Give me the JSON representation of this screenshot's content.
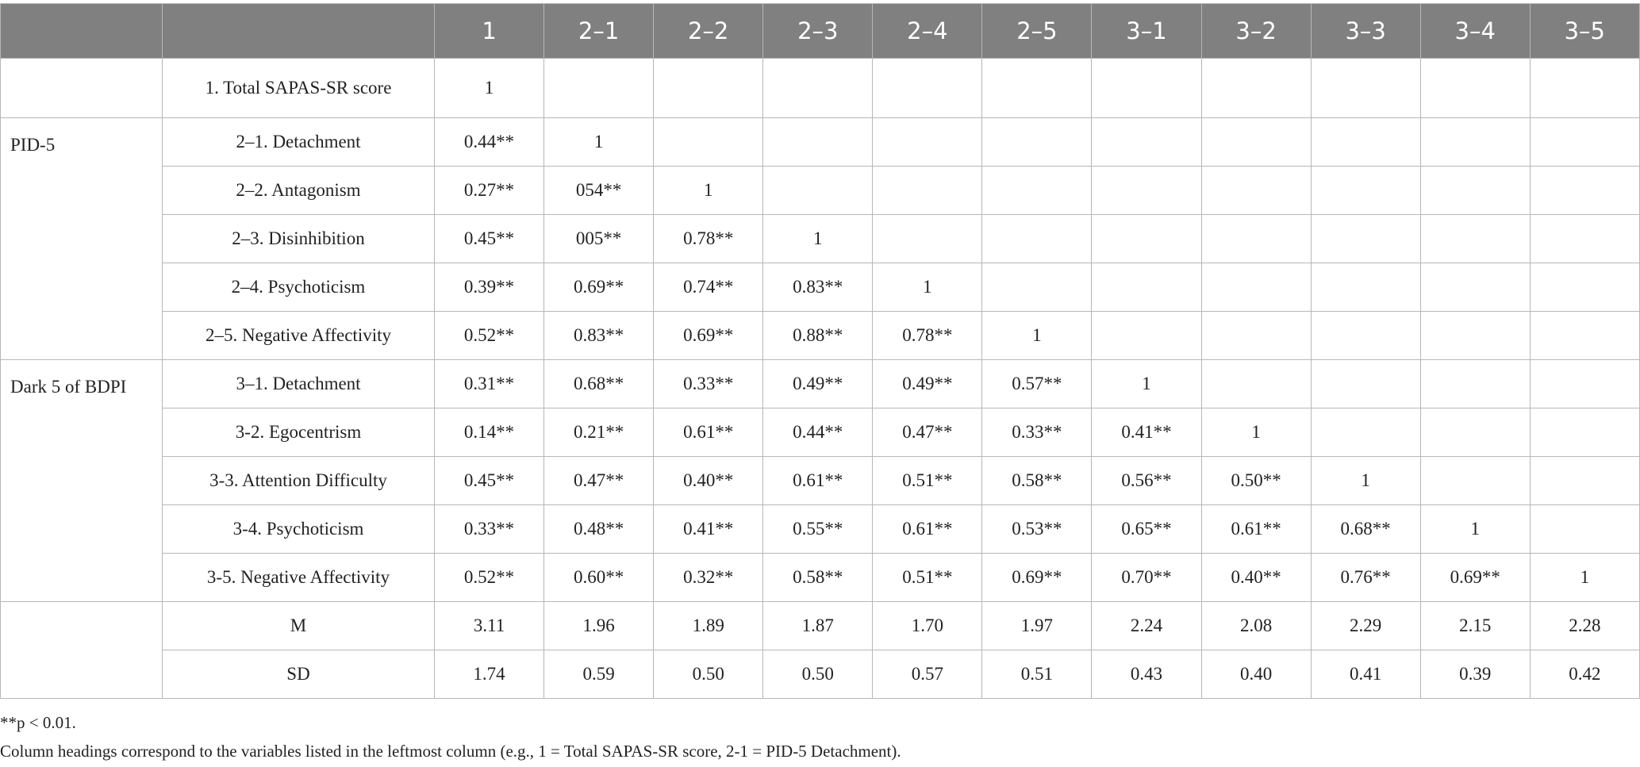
{
  "table": {
    "columns": [
      "1",
      "2–1",
      "2–2",
      "2–3",
      "2–4",
      "2–5",
      "3–1",
      "3–2",
      "3–3",
      "3–4",
      "3–5"
    ],
    "sections": [
      {
        "rows": [
          {
            "label": "1. Total SAPAS-SR score",
            "cells": [
              "1"
            ]
          }
        ]
      },
      {
        "label": "PID-5",
        "rows": [
          {
            "label": "2–1. Detachment",
            "cells": [
              "0.44**",
              "1"
            ]
          },
          {
            "label": "2–2. Antagonism",
            "cells": [
              "0.27**",
              "054**",
              "1"
            ]
          },
          {
            "label": "2–3. Disinhibition",
            "cells": [
              "0.45**",
              "005**",
              "0.78**",
              "1"
            ]
          },
          {
            "label": "2–4. Psychoticism",
            "cells": [
              "0.39**",
              "0.69**",
              "0.74**",
              "0.83**",
              "1"
            ]
          },
          {
            "label": "2–5. Negative Affectivity",
            "cells": [
              "0.52**",
              "0.83**",
              "0.69**",
              "0.88**",
              "0.78**",
              "1"
            ]
          }
        ]
      },
      {
        "label": "Dark 5 of BDPI",
        "rows": [
          {
            "label": "3–1. Detachment",
            "cells": [
              "0.31**",
              "0.68**",
              "0.33**",
              "0.49**",
              "0.49**",
              "0.57**",
              "1"
            ]
          },
          {
            "label": "3-2. Egocentrism",
            "cells": [
              "0.14**",
              "0.21**",
              "0.61**",
              "0.44**",
              "0.47**",
              "0.33**",
              "0.41**",
              "1"
            ]
          },
          {
            "label": "3-3. Attention Difficulty",
            "cells": [
              "0.45**",
              "0.47**",
              "0.40**",
              "0.61**",
              "0.51**",
              "0.58**",
              "0.56**",
              "0.50**",
              "1"
            ]
          },
          {
            "label": "3-4. Psychoticism",
            "cells": [
              "0.33**",
              "0.48**",
              "0.41**",
              "0.55**",
              "0.61**",
              "0.53**",
              "0.65**",
              "0.61**",
              "0.68**",
              "1"
            ]
          },
          {
            "label": "3-5. Negative Affectivity",
            "cells": [
              "0.52**",
              "0.60**",
              "0.32**",
              "0.58**",
              "0.51**",
              "0.69**",
              "0.70**",
              "0.40**",
              "0.76**",
              "0.69**",
              "1"
            ]
          }
        ]
      },
      {
        "rows": [
          {
            "label": "M",
            "cells": [
              "3.11",
              "1.96",
              "1.89",
              "1.87",
              "1.70",
              "1.97",
              "2.24",
              "2.08",
              "2.29",
              "2.15",
              "2.28"
            ]
          },
          {
            "label": "SD",
            "cells": [
              "1.74",
              "0.59",
              "0.50",
              "0.50",
              "0.57",
              "0.51",
              "0.43",
              "0.40",
              "0.41",
              "0.39",
              "0.42"
            ]
          }
        ]
      }
    ],
    "notes": [
      "**p < 0.01.",
      "Column headings correspond to the variables listed in the leftmost column (e.g., 1 = Total SAPAS-SR score, 2-1 = PID-5 Detachment)."
    ]
  }
}
